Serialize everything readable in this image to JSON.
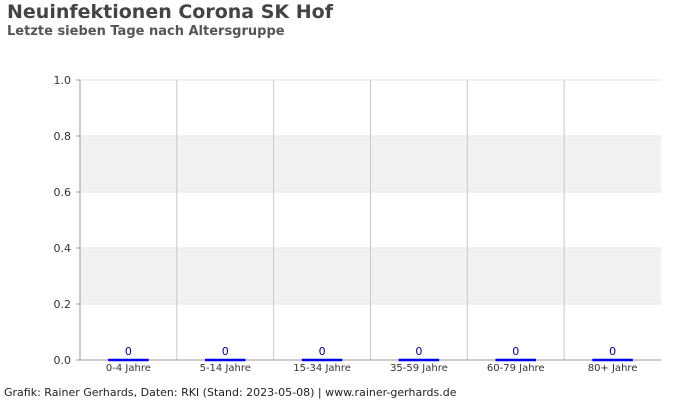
{
  "header": {
    "title": "Neuinfektionen Corona SK Hof",
    "subtitle": "Letzte sieben Tage nach Altersgruppe"
  },
  "footer": {
    "credit": "Grafik: Rainer Gerhards, Daten: RKI (Stand: 2023-05-08) | www.rainer-gerhards.de"
  },
  "chart_data": {
    "type": "bar",
    "categories": [
      "0-4 Jahre",
      "5-14 Jahre",
      "15-34 Jahre",
      "35-59 Jahre",
      "60-79 Jahre",
      "80+ Jahre"
    ],
    "values": [
      0,
      0,
      0,
      0,
      0,
      0
    ],
    "value_labels": [
      "0",
      "0",
      "0",
      "0",
      "0",
      "0"
    ],
    "title": "Neuinfektionen Corona SK Hof",
    "subtitle": "Letzte sieben Tage nach Altersgruppe",
    "xlabel": "",
    "ylabel": "",
    "ylim": [
      0,
      1
    ],
    "yticks": [
      "0.0",
      "0.2",
      "0.4",
      "0.6",
      "0.8",
      "1.0"
    ],
    "grid": true,
    "colors": {
      "bar": "#0000ee",
      "value_label": "#000080",
      "band": "#f2f2f2",
      "gridline": "#c8c8c8"
    }
  }
}
